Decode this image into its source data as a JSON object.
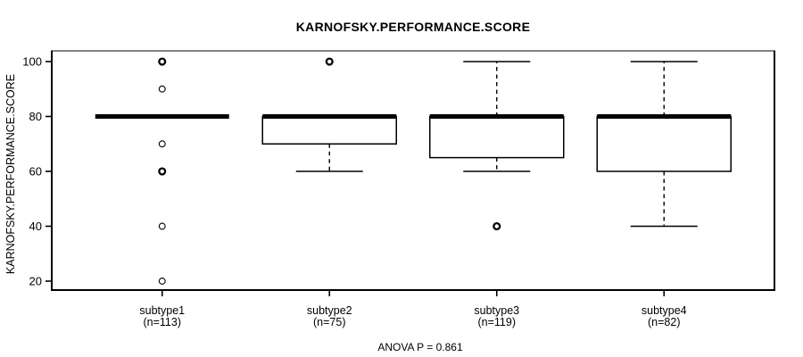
{
  "chart": {
    "title": "KARNOFSKY.PERFORMANCE.SCORE",
    "ylabel": "KARNOFSKY.PERFORMANCE.SCORE",
    "footer": "ANOVA P = 0.861"
  },
  "chart_data": {
    "type": "boxplot",
    "title": "KARNOFSKY.PERFORMANCE.SCORE",
    "xlabel": "",
    "ylabel": "KARNOFSKY.PERFORMANCE.SCORE",
    "footer": "ANOVA P = 0.861",
    "grid": false,
    "yticks": [
      20,
      40,
      60,
      80,
      100
    ],
    "ylim": [
      16.75,
      103.9
    ],
    "categories": [
      "subtype1",
      "subtype2",
      "subtype3",
      "subtype4"
    ],
    "sample_size_labels": [
      "(n=113)",
      "(n=75)",
      "(n=119)",
      "(n=82)"
    ],
    "series": [
      {
        "name": "subtype1",
        "n": 113,
        "q1": 80,
        "median": 80,
        "q3": 80,
        "whisker_low": 80,
        "whisker_high": 80,
        "outliers": [
          100,
          90,
          70,
          60,
          40,
          20
        ],
        "outliers_emphasized": [
          100,
          60
        ]
      },
      {
        "name": "subtype2",
        "n": 75,
        "q1": 70,
        "median": 80,
        "q3": 80,
        "whisker_low": 60,
        "whisker_high": 80,
        "outliers": [
          100
        ],
        "outliers_emphasized": [
          100
        ]
      },
      {
        "name": "subtype3",
        "n": 119,
        "q1": 65,
        "median": 80,
        "q3": 80,
        "whisker_low": 60,
        "whisker_high": 100,
        "outliers": [
          40
        ],
        "outliers_emphasized": [
          40
        ]
      },
      {
        "name": "subtype4",
        "n": 82,
        "q1": 60,
        "median": 80,
        "q3": 80,
        "whisker_low": 40,
        "whisker_high": 100,
        "outliers": [],
        "outliers_emphasized": []
      }
    ],
    "colors": {
      "line": "#000000",
      "frame_top": "#828282",
      "box_fill": "#ffffff",
      "background": "#ffffff"
    }
  }
}
